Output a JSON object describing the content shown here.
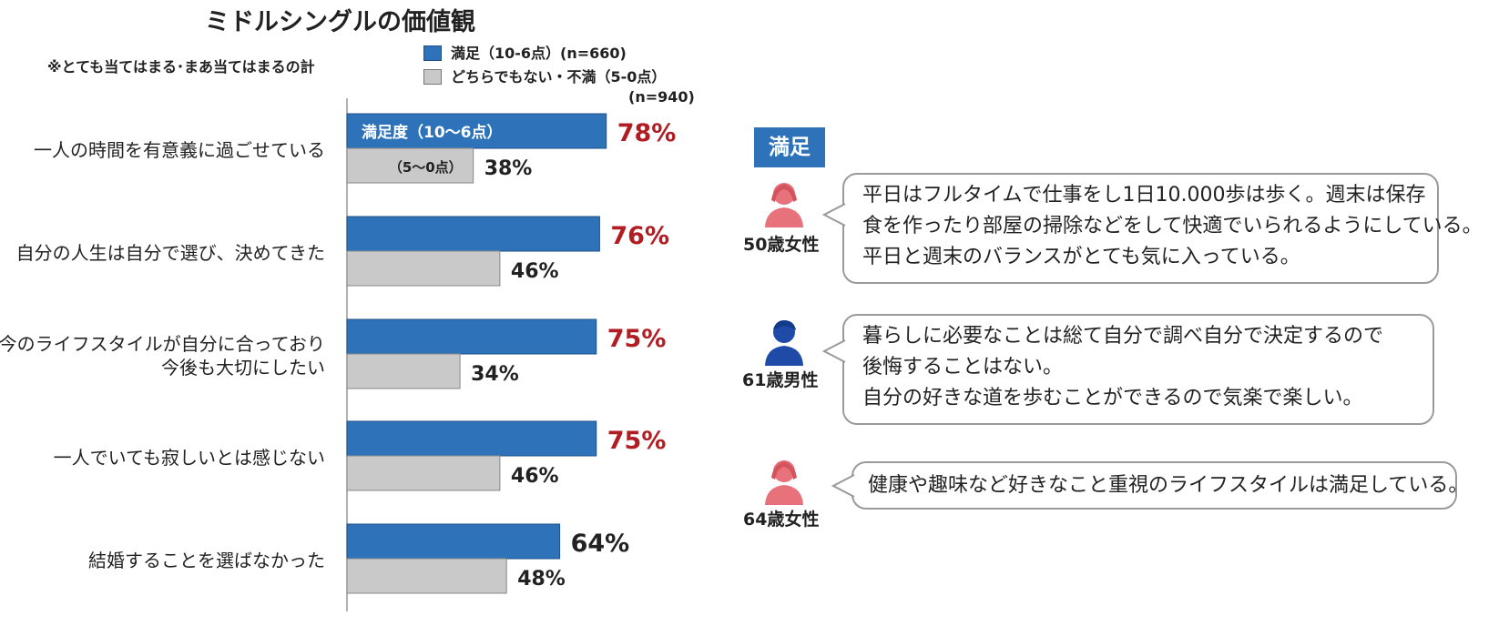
{
  "title": "ミドルシングルの価値観",
  "note": "※とても当てはまる･まあ当てはまるの計",
  "legend": {
    "satisfied": "満足（10-6点）(n=660)",
    "unsatisfied": "どちらでもない・不満（5-0点）",
    "unsatisfied_n": "(n=940)"
  },
  "badge": "満足",
  "colors": {
    "satisfied": "#2e73ba",
    "unsatisfied": "#c9c9c9",
    "highlight_text": "#b01e23"
  },
  "chart_data": {
    "type": "bar",
    "orientation": "horizontal",
    "categories": [
      [
        "一人の時間を有意義に過ごせている"
      ],
      [
        "自分の人生は自分で選び、決めてきた"
      ],
      [
        "今のライフスタイルが自分に合っており",
        "今後も大切にしたい"
      ],
      [
        "一人でいても寂しいとは感じない"
      ],
      [
        "結婚することを選ばなかった"
      ]
    ],
    "series": [
      {
        "name": "満足（10-6点）(n=660)",
        "values": [
          78,
          76,
          75,
          75,
          64
        ],
        "labels": [
          "78%",
          "76%",
          "75%",
          "75%",
          "64%"
        ],
        "label_emphasis": [
          true,
          true,
          true,
          true,
          false
        ]
      },
      {
        "name": "どちらでもない・不満（5-0点）(n=940)",
        "values": [
          38,
          46,
          34,
          46,
          48
        ],
        "labels": [
          "38%",
          "46%",
          "34%",
          "46%",
          "48%"
        ]
      }
    ],
    "in_bar_labels": {
      "satisfied": "満足度（10～6点）",
      "unsatisfied": "（5～0点）"
    },
    "xlim": [
      0,
      100
    ],
    "legend_position": "top"
  },
  "personas": [
    {
      "label": "50歳女性",
      "gender": "female",
      "icon": "woman-icon",
      "lines": [
        "平日はフルタイムで仕事をし1日10.000歩は歩く。週末は保存",
        "食を作ったり部屋の掃除などをして快適でいられるようにしている。",
        "平日と週末のバランスがとても気に入っている。"
      ]
    },
    {
      "label": "61歳男性",
      "gender": "male",
      "icon": "man-icon",
      "lines": [
        "暮らしに必要なことは総て自分で調べ自分で決定するので",
        "後悔することはない。",
        "自分の好きな道を歩むことができるので気楽で楽しい。"
      ]
    },
    {
      "label": "64歳女性",
      "gender": "female",
      "icon": "woman-icon",
      "lines": [
        "健康や趣味など好きなこと重視のライフスタイルは満足している。"
      ]
    }
  ]
}
